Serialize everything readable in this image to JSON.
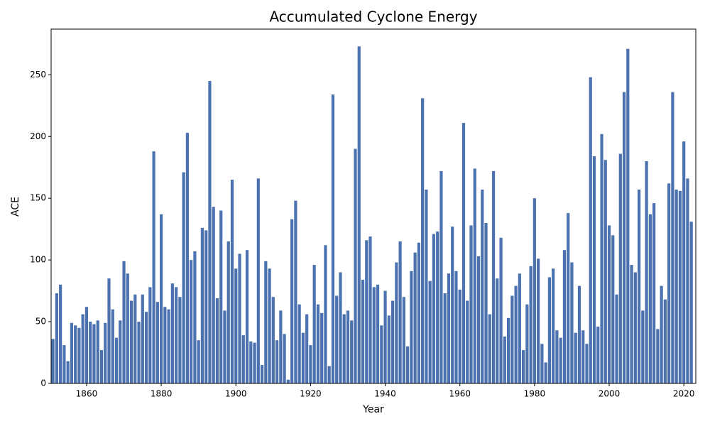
{
  "chart_data": {
    "type": "bar",
    "title": "Accumulated Cyclone Energy",
    "x_label": "Year",
    "y_label": "ACE",
    "color": "#4c72b0",
    "x": [
      1851,
      1852,
      1853,
      1854,
      1855,
      1856,
      1857,
      1858,
      1859,
      1860,
      1861,
      1862,
      1863,
      1864,
      1865,
      1866,
      1867,
      1868,
      1869,
      1870,
      1871,
      1872,
      1873,
      1874,
      1875,
      1876,
      1877,
      1878,
      1879,
      1880,
      1881,
      1882,
      1883,
      1884,
      1885,
      1886,
      1887,
      1888,
      1889,
      1890,
      1891,
      1892,
      1893,
      1894,
      1895,
      1896,
      1897,
      1898,
      1899,
      1900,
      1901,
      1902,
      1903,
      1904,
      1905,
      1906,
      1907,
      1908,
      1909,
      1910,
      1911,
      1912,
      1913,
      1914,
      1915,
      1916,
      1917,
      1918,
      1919,
      1920,
      1921,
      1922,
      1923,
      1924,
      1925,
      1926,
      1927,
      1928,
      1929,
      1930,
      1931,
      1932,
      1933,
      1934,
      1935,
      1936,
      1937,
      1938,
      1939,
      1940,
      1941,
      1942,
      1943,
      1944,
      1945,
      1946,
      1947,
      1948,
      1949,
      1950,
      1951,
      1952,
      1953,
      1954,
      1955,
      1956,
      1957,
      1958,
      1959,
      1960,
      1961,
      1962,
      1963,
      1964,
      1965,
      1966,
      1967,
      1968,
      1969,
      1970,
      1971,
      1972,
      1973,
      1974,
      1975,
      1976,
      1977,
      1978,
      1979,
      1980,
      1981,
      1982,
      1983,
      1984,
      1985,
      1986,
      1987,
      1988,
      1989,
      1990,
      1991,
      1992,
      1993,
      1994,
      1995,
      1996,
      1997,
      1998,
      1999,
      2000,
      2001,
      2002,
      2003,
      2004,
      2005,
      2006,
      2007,
      2008,
      2009,
      2010,
      2011,
      2012,
      2013,
      2014,
      2015,
      2016,
      2017,
      2018,
      2019,
      2020,
      2021,
      2022
    ],
    "values": [
      36,
      73,
      80,
      31,
      18,
      49,
      47,
      45,
      56,
      62,
      50,
      48,
      51,
      27,
      49,
      85,
      60,
      37,
      51,
      99,
      89,
      67,
      72,
      50,
      72,
      58,
      78,
      188,
      66,
      137,
      62,
      60,
      81,
      78,
      70,
      171,
      203,
      100,
      107,
      35,
      126,
      124,
      245,
      143,
      69,
      140,
      59,
      115,
      165,
      93,
      105,
      39,
      108,
      34,
      33,
      166,
      15,
      99,
      93,
      70,
      35,
      59,
      40,
      3,
      133,
      148,
      64,
      41,
      56,
      31,
      96,
      64,
      57,
      112,
      14,
      234,
      71,
      90,
      56,
      59,
      51,
      190,
      273,
      84,
      116,
      119,
      78,
      80,
      47,
      75,
      55,
      67,
      98,
      115,
      70,
      30,
      91,
      106,
      114,
      231,
      157,
      83,
      121,
      123,
      172,
      73,
      89,
      127,
      91,
      76,
      211,
      67,
      128,
      174,
      103,
      157,
      130,
      56,
      172,
      85,
      118,
      38,
      53,
      71,
      79,
      89,
      27,
      64,
      95,
      150,
      101,
      32,
      17,
      86,
      93,
      43,
      37,
      108,
      138,
      98,
      41,
      79,
      43,
      32,
      248,
      184,
      46,
      202,
      181,
      128,
      120,
      72,
      186,
      236,
      271,
      96,
      90,
      157,
      59,
      180,
      137,
      146,
      44,
      79,
      68,
      162,
      236,
      157,
      156,
      196,
      166,
      131
    ],
    "xlim": [
      1850.5,
      2023.2
    ],
    "xticks": [
      1860,
      1880,
      1900,
      1920,
      1940,
      1960,
      1980,
      2000,
      2020
    ],
    "ylim": [
      0,
      287
    ],
    "yticks": [
      0,
      50,
      100,
      150,
      200,
      250
    ]
  }
}
